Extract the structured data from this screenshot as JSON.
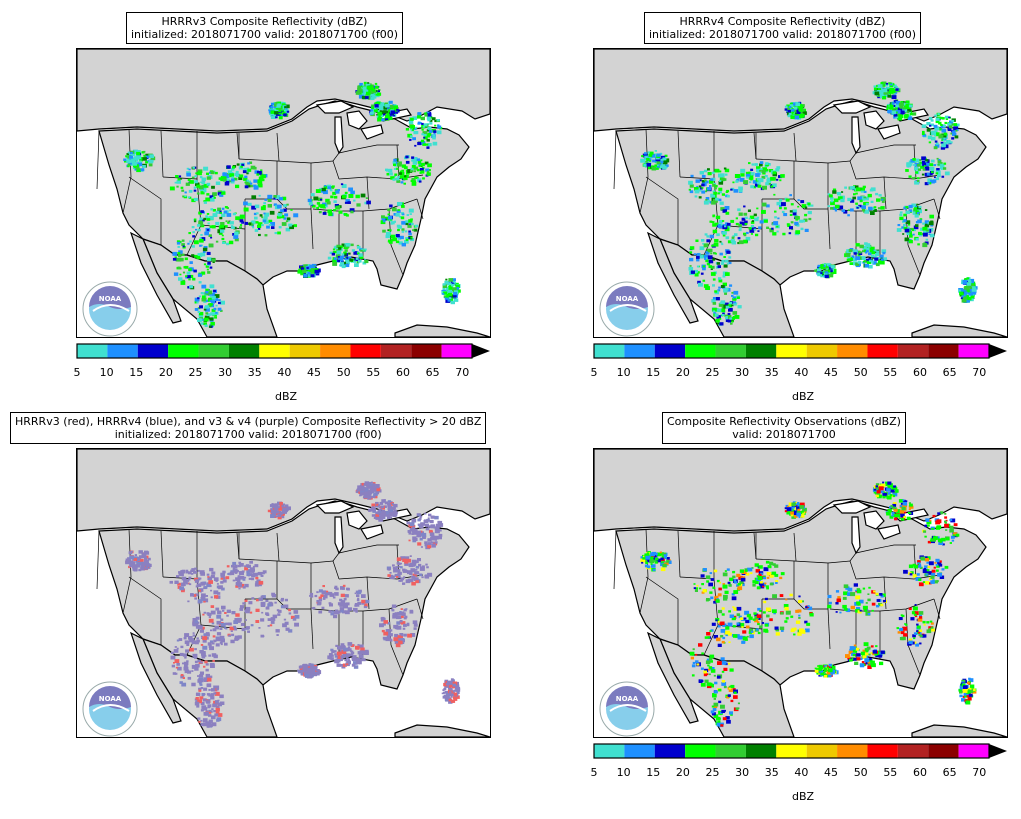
{
  "panels": [
    {
      "title_line1": "HRRRv3 Composite Reflectivity (dBZ)",
      "title_line2": "initialized: 2018071700 valid: 2018071700 (f00)"
    },
    {
      "title_line1": "HRRRv4 Composite Reflectivity (dBZ)",
      "title_line2": "initialized: 2018071700 valid: 2018071700 (f00)"
    },
    {
      "title_line1": "HRRRv3 (red), HRRRv4 (blue), and v3 & v4 (purple) Composite Reflectivity > 20 dBZ",
      "title_line2": "initialized: 2018071700 valid: 2018071700 (f00)"
    },
    {
      "title_line1": "Composite Reflectivity Observations (dBZ)",
      "title_line2": "valid: 2018071700"
    }
  ],
  "colorbar": {
    "ticks": [
      "5",
      "10",
      "15",
      "20",
      "25",
      "30",
      "35",
      "40",
      "45",
      "50",
      "55",
      "60",
      "65",
      "70"
    ],
    "unit": "dBZ",
    "colors": [
      "#40e0d0",
      "#1e90ff",
      "#0000cd",
      "#00ff00",
      "#32cd32",
      "#008000",
      "#ffff00",
      "#eec900",
      "#ff8c00",
      "#ff0000",
      "#b22222",
      "#8b0000",
      "#ff00ff"
    ]
  },
  "logo_text": "NOAA",
  "colors": {
    "land": "#d3d3d3",
    "water": "#ffffff",
    "v3_red": "#f06060",
    "v4_blue": "#7f86c8",
    "purple": "#8b80c0"
  }
}
